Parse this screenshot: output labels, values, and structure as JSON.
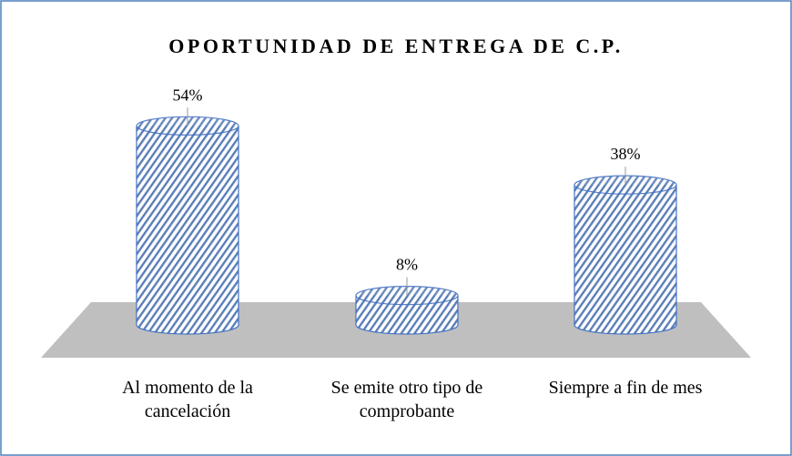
{
  "chart_data": {
    "type": "bar3d",
    "title": "OPORTUNIDAD DE ENTREGA DE C.P.",
    "categories": [
      "Al momento de la cancelación",
      "Se emite otro tipo de comprobante",
      "Siempre a fin de mes"
    ],
    "values": [
      54,
      8,
      38
    ],
    "value_labels": [
      "54%",
      "8%",
      "38%"
    ],
    "color": "#4472c4"
  }
}
